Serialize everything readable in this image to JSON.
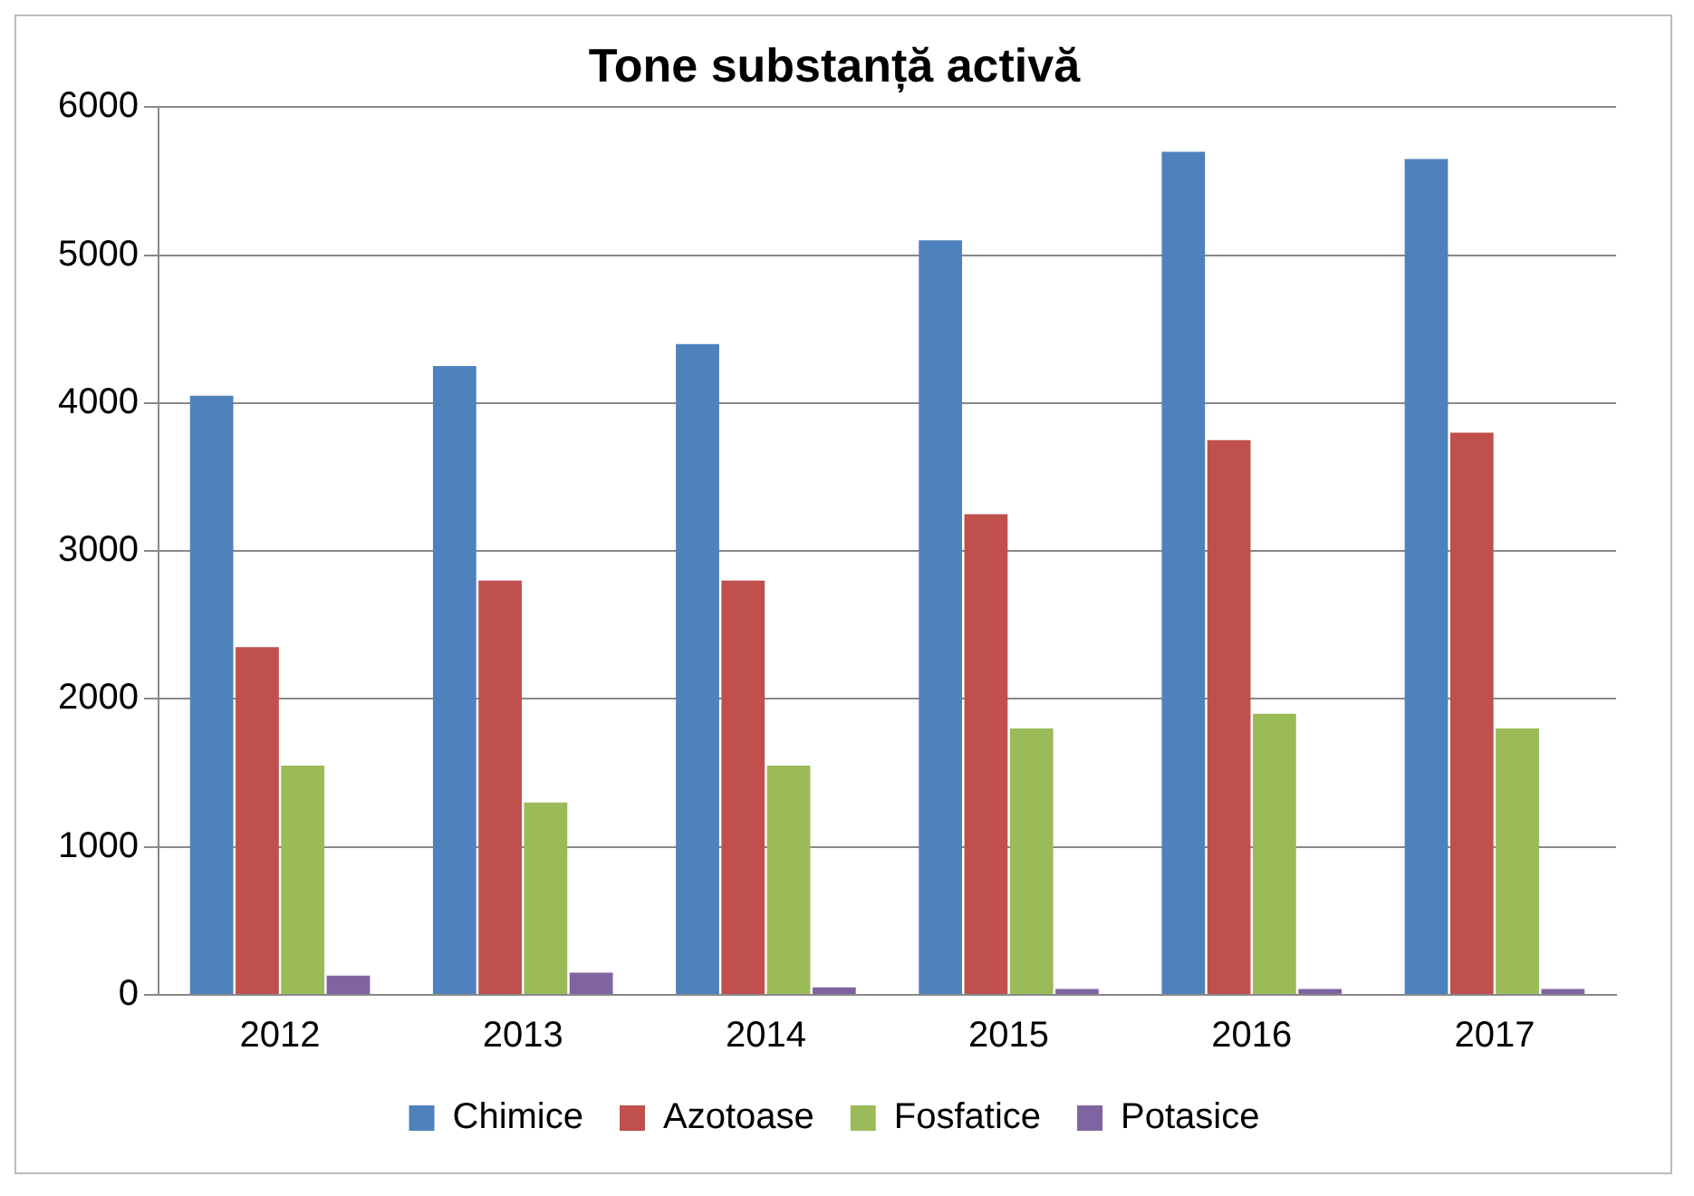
{
  "chart_data": {
    "type": "bar",
    "title": "Tone substanță activă",
    "categories": [
      "2012",
      "2013",
      "2014",
      "2015",
      "2016",
      "2017"
    ],
    "series": [
      {
        "name": "Chimice",
        "color": "#4f81bd",
        "values": [
          4050,
          4250,
          4400,
          5100,
          5700,
          5650
        ]
      },
      {
        "name": "Azotoase",
        "color": "#c0504d",
        "values": [
          2350,
          2800,
          2800,
          3250,
          3750,
          3800
        ]
      },
      {
        "name": "Fosfatice",
        "color": "#9bbb59",
        "values": [
          1550,
          1300,
          1550,
          1800,
          1900,
          1800
        ]
      },
      {
        "name": "Potasice",
        "color": "#8064a2",
        "values": [
          130,
          150,
          50,
          40,
          40,
          40
        ]
      }
    ],
    "ylim": [
      0,
      6000
    ],
    "yticks": [
      0,
      1000,
      2000,
      3000,
      4000,
      5000,
      6000
    ],
    "grid": "y",
    "legend": "bottom"
  }
}
